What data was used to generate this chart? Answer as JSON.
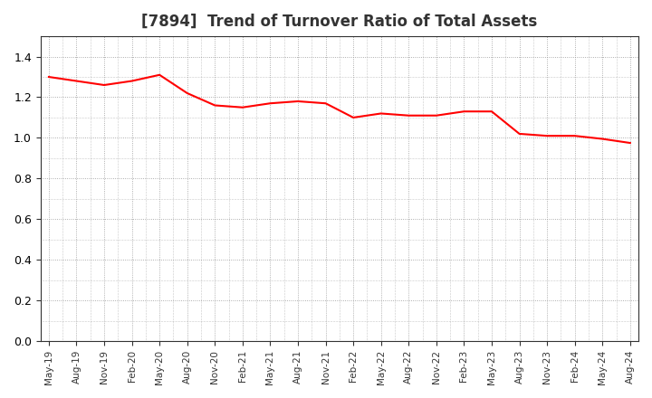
{
  "title": "[7894]  Trend of Turnover Ratio of Total Assets",
  "line_color": "#FF0000",
  "line_width": 1.5,
  "background_color": "#FFFFFF",
  "plot_bg_color": "#FFFFFF",
  "grid_color": "#999999",
  "ylim": [
    0.0,
    1.5
  ],
  "yticks": [
    0.0,
    0.2,
    0.4,
    0.6,
    0.8,
    1.0,
    1.2,
    1.4
  ],
  "x_labels": [
    "May-19",
    "Aug-19",
    "Nov-19",
    "Feb-20",
    "May-20",
    "Aug-20",
    "Nov-20",
    "Feb-21",
    "May-21",
    "Aug-21",
    "Nov-21",
    "Feb-22",
    "May-22",
    "Aug-22",
    "Nov-22",
    "Feb-23",
    "May-23",
    "Aug-23",
    "Nov-23",
    "Feb-24",
    "May-24",
    "Aug-24"
  ],
  "values": [
    1.3,
    1.28,
    1.26,
    1.28,
    1.31,
    1.22,
    1.16,
    1.15,
    1.17,
    1.18,
    1.17,
    1.1,
    1.12,
    1.11,
    1.11,
    1.13,
    1.13,
    1.02,
    1.01,
    1.01,
    0.995,
    0.975
  ],
  "title_fontsize": 12,
  "title_color": "#333333"
}
